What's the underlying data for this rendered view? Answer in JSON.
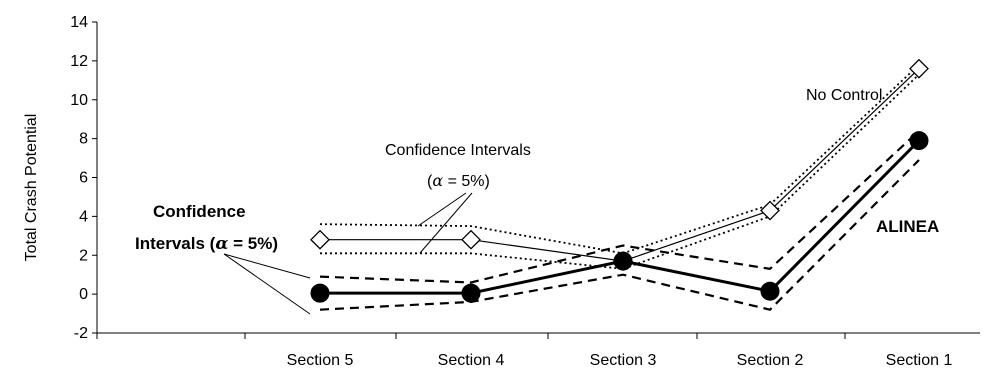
{
  "chart_data": {
    "type": "line",
    "title": "",
    "xlabel": "",
    "ylabel": "Total Crash Potential",
    "ylim": [
      -2,
      14
    ],
    "yticks": [
      -2,
      0,
      2,
      4,
      6,
      8,
      10,
      12,
      14
    ],
    "ytick_labels": [
      "-2",
      "0",
      "2",
      "4",
      "6",
      "8",
      "10",
      "12",
      "14"
    ],
    "categories": [
      "Section 5",
      "Section 4",
      "Section 3",
      "Section 2",
      "Section 1"
    ],
    "grid": false,
    "legend": "none",
    "series": [
      {
        "name": "No Control",
        "marker": "open-diamond",
        "line": "solid-thin",
        "values": [
          2.8,
          2.8,
          1.7,
          4.3,
          11.6
        ],
        "ci_upper": [
          3.6,
          3.5,
          2.1,
          4.6,
          11.8
        ],
        "ci_lower": [
          2.1,
          2.1,
          1.3,
          4.0,
          11.3
        ]
      },
      {
        "name": "ALINEA",
        "marker": "filled-circle",
        "line": "solid-thick",
        "values": [
          0.05,
          0.05,
          1.7,
          0.15,
          7.9
        ],
        "ci_upper": [
          0.9,
          0.6,
          2.5,
          1.3,
          8.4
        ],
        "ci_lower": [
          -0.8,
          -0.4,
          1.0,
          -0.8,
          6.9
        ]
      }
    ],
    "annotations": {
      "no_control": "No Control",
      "alinea": "ALINEA",
      "ci_top_line1": "Confidence Intervals",
      "ci_top_line2_alpha": "α",
      "ci_top_line2_rest": " = 5%)",
      "ci_top_line2_open": "(",
      "ci_left_line1": "Confidence",
      "ci_left_line2_start": "Intervals (",
      "ci_left_line2_alpha": "α",
      "ci_left_line2_rest": " = 5%)"
    }
  }
}
